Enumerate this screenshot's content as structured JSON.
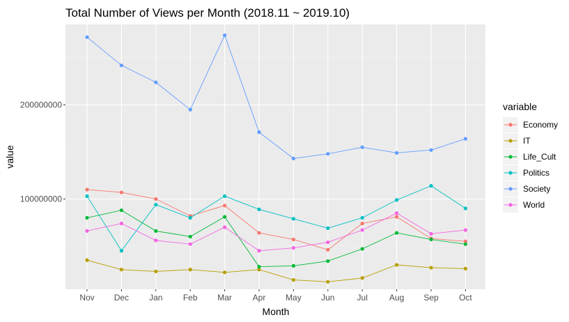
{
  "chart_data": {
    "type": "line",
    "title": "Total Number of Views per Month (2018.11 ~ 2019.10)",
    "xlabel": "Month",
    "ylabel": "value",
    "categories": [
      "Nov",
      "Dec",
      "Jan",
      "Feb",
      "Mar",
      "Apr",
      "May",
      "Jun",
      "Jul",
      "Aug",
      "Sep",
      "Oct"
    ],
    "ylim": [
      0,
      300000000
    ],
    "yticks": [
      100000000,
      200000000
    ],
    "ytick_labels": [
      "100000000",
      "200000000"
    ],
    "grid": true,
    "legend_title": "variable",
    "legend_position": "right",
    "series": [
      {
        "name": "Economy",
        "color": "#F8766D",
        "values": [
          110000000,
          107000000,
          100000000,
          82000000,
          93000000,
          64000000,
          57000000,
          46000000,
          74000000,
          81000000,
          58000000,
          55000000
        ]
      },
      {
        "name": "IT",
        "color": "#B79F00",
        "values": [
          35000000,
          25000000,
          23000000,
          25000000,
          22000000,
          25000000,
          14000000,
          12000000,
          16000000,
          30000000,
          27000000,
          26000000
        ]
      },
      {
        "name": "Life_Cult",
        "color": "#00BA38",
        "values": [
          80000000,
          88000000,
          66000000,
          60000000,
          81000000,
          28000000,
          29000000,
          34000000,
          47000000,
          64000000,
          57000000,
          52000000
        ]
      },
      {
        "name": "Politics",
        "color": "#00BFC4",
        "values": [
          103000000,
          45000000,
          94000000,
          80000000,
          103000000,
          89000000,
          79000000,
          69000000,
          80000000,
          99000000,
          114000000,
          90000000
        ]
      },
      {
        "name": "Society",
        "color": "#619CFF",
        "values": [
          272000000,
          242000000,
          224000000,
          195000000,
          274000000,
          171000000,
          143000000,
          148000000,
          155000000,
          149000000,
          152000000,
          164000000
        ]
      },
      {
        "name": "World",
        "color": "#F564E3",
        "values": [
          66000000,
          74000000,
          56000000,
          52000000,
          70000000,
          45000000,
          48000000,
          54000000,
          67000000,
          85000000,
          63000000,
          67000000
        ]
      }
    ]
  }
}
